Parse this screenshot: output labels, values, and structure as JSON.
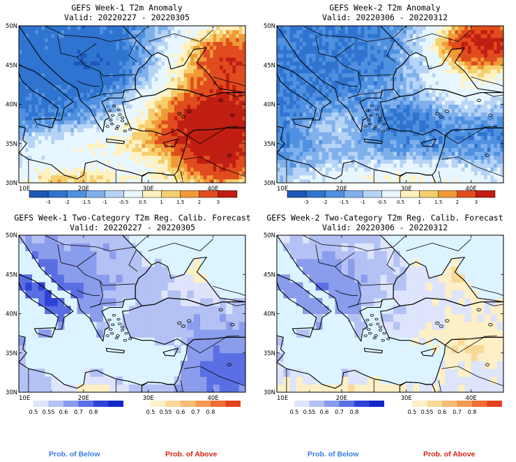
{
  "panels": [
    {
      "title": "GEFS Week-1 T2m Anomaly",
      "valid": "Valid: 20220227 - 20220305"
    },
    {
      "title": "GEFS Week-2 T2m Anomaly",
      "valid": "Valid: 20220306 - 20220312"
    },
    {
      "title": "GEFS Week-1 Two-Category T2m Reg. Calib. Forecast",
      "valid": "Valid: 20220227 - 20220305"
    },
    {
      "title": "GEFS Week-2 Two-Category T2m Reg. Calib. Forecast",
      "valid": "Valid: 20220306 - 20220312"
    }
  ],
  "lat_labels": [
    "50N",
    "45N",
    "40N",
    "35N",
    "30N"
  ],
  "lon_labels": [
    "10E",
    "20E",
    "30E",
    "40E"
  ],
  "anomaly_colorbar": {
    "labels": [
      "-3",
      "-2",
      "-1.5",
      "-1",
      "-0.5",
      "0.5",
      "1",
      "1.5",
      "2",
      "3"
    ],
    "colors": [
      "#1c58b8",
      "#2f74d0",
      "#4f91e0",
      "#7fb0ec",
      "#b6d4f6",
      "#e8f6ff",
      "#fff2c0",
      "#f6cf6e",
      "#f09a37",
      "#e04c1e",
      "#c01e12"
    ]
  },
  "prob_below_colorbar": {
    "labels": [
      "0.5",
      "0.55",
      "0.6",
      "0.7",
      "0.8"
    ],
    "colors": [
      "#dde4fb",
      "#b4c1f4",
      "#8a9cec",
      "#5a6fe3",
      "#2f42d8",
      "#1426c8"
    ]
  },
  "prob_above_colorbar": {
    "labels": [
      "0.5",
      "0.55",
      "0.6",
      "0.7",
      "0.8"
    ],
    "colors": [
      "#fdefc6",
      "#f9d898",
      "#f6bd74",
      "#f39a52",
      "#ef6e36",
      "#e34420"
    ]
  },
  "legend_labels": {
    "below": "Prob. of Below",
    "above": "Prob. of Above"
  },
  "colors": {
    "below_label": "#3a7be6",
    "above_label": "#d8210f",
    "sea_prob": "#dcf4ff",
    "sea_anom": "#ffffff"
  }
}
